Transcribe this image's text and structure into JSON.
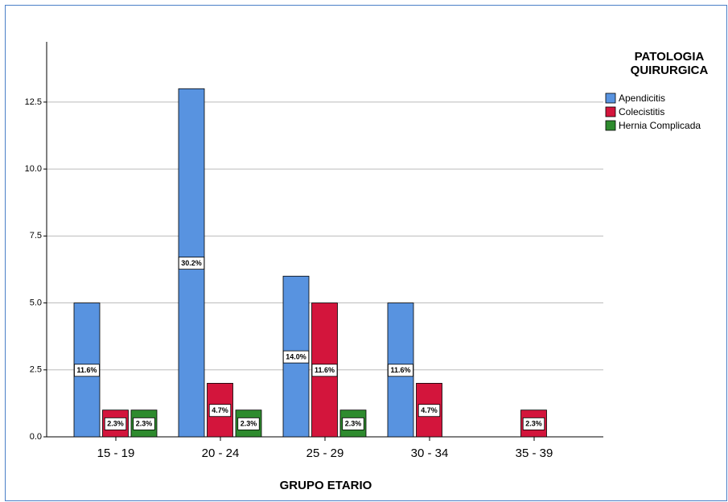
{
  "chart_data": {
    "type": "bar",
    "x_label": "GRUPO ETARIO",
    "legend_title": "PATOLOGIA QUIRURGICA",
    "legend": "right",
    "categories": [
      "15 - 19",
      "20 - 24",
      "25 - 29",
      "30 - 34",
      "35 - 39"
    ],
    "series": [
      {
        "name": "Apendicitis",
        "color": "#5893e0",
        "values": [
          5,
          13,
          6,
          5,
          null
        ],
        "percent_labels": [
          "11.6%",
          "30.2%",
          "14.0%",
          "11.6%",
          null
        ]
      },
      {
        "name": "Colecistitis",
        "color": "#d3153c",
        "values": [
          1,
          2,
          5,
          2,
          1
        ],
        "percent_labels": [
          "2.3%",
          "4.7%",
          "11.6%",
          "4.7%",
          "2.3%"
        ]
      },
      {
        "name": "Hernia Complicada",
        "color": "#2e8b2e",
        "values": [
          1,
          1,
          1,
          null,
          null
        ],
        "percent_labels": [
          "2.3%",
          "2.3%",
          "2.3%",
          null,
          null
        ]
      }
    ],
    "ylim": [
      0,
      14.75
    ],
    "yticks": [
      {
        "value": 0,
        "label": "0.0"
      },
      {
        "value": 2.5,
        "label": "2.5"
      },
      {
        "value": 5,
        "label": "5.0"
      },
      {
        "value": 7.5,
        "label": "7.5"
      },
      {
        "value": 10,
        "label": "10.0"
      },
      {
        "value": 12.5,
        "label": "12.5"
      }
    ],
    "grid": true
  }
}
